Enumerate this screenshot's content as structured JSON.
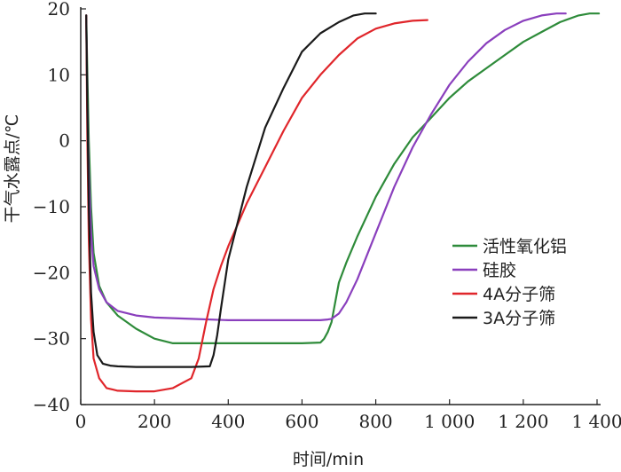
{
  "chart_data": {
    "type": "line",
    "xlabel": "时间/min",
    "ylabel": "干气水露点/℃",
    "xlim": [
      0,
      1400
    ],
    "ylim": [
      -40,
      20
    ],
    "x_ticks": [
      0,
      200,
      400,
      600,
      800,
      1000,
      1200,
      1400
    ],
    "x_tick_labels": [
      "0",
      "200",
      "400",
      "600",
      "800",
      "1 000",
      "1 200",
      "1 400"
    ],
    "y_ticks": [
      -40,
      -30,
      -20,
      -10,
      0,
      10,
      20
    ],
    "y_tick_labels": [
      "−40",
      "−30",
      "−20",
      "−10",
      "0",
      "10",
      "20"
    ],
    "grid": false,
    "legend_position": "right",
    "series": [
      {
        "name": "活性氧化铝",
        "color": "#2e8b3a",
        "x": [
          15,
          18,
          22,
          28,
          35,
          50,
          70,
          100,
          150,
          200,
          250,
          300,
          400,
          500,
          600,
          650,
          660,
          670,
          680,
          700,
          720,
          750,
          800,
          850,
          900,
          950,
          1000,
          1050,
          1100,
          1150,
          1200,
          1250,
          1300,
          1350,
          1380,
          1405
        ],
        "y": [
          19,
          10,
          0,
          -10,
          -17,
          -22,
          -24.5,
          -26.5,
          -28.5,
          -30,
          -30.7,
          -30.7,
          -30.7,
          -30.7,
          -30.7,
          -30.6,
          -30,
          -29,
          -27.5,
          -21.5,
          -18.5,
          -14.5,
          -8.5,
          -3.5,
          0.5,
          3.5,
          6.5,
          9,
          11,
          13,
          15,
          16.5,
          18,
          19,
          19.3,
          19.3
        ]
      },
      {
        "name": "硅胶",
        "color": "#8a3fbd",
        "x": [
          15,
          18,
          22,
          28,
          35,
          50,
          70,
          100,
          150,
          200,
          300,
          400,
          500,
          600,
          650,
          670,
          680,
          700,
          720,
          750,
          800,
          850,
          900,
          950,
          1000,
          1050,
          1100,
          1150,
          1200,
          1250,
          1290,
          1315
        ],
        "y": [
          19,
          5,
          -5,
          -14,
          -19,
          -22.5,
          -24.5,
          -25.8,
          -26.5,
          -26.8,
          -27,
          -27.2,
          -27.2,
          -27.2,
          -27.2,
          -27.1,
          -27,
          -26.2,
          -24.5,
          -21,
          -14,
          -7,
          -1,
          4,
          8.5,
          12,
          14.8,
          16.8,
          18.2,
          19,
          19.3,
          19.3
        ]
      },
      {
        "name": "4A分子筛",
        "color": "#e0262b",
        "x": [
          15,
          18,
          22,
          28,
          35,
          50,
          70,
          100,
          150,
          200,
          250,
          300,
          320,
          340,
          360,
          380,
          400,
          450,
          500,
          550,
          600,
          650,
          700,
          750,
          800,
          850,
          900,
          940
        ],
        "y": [
          19,
          0,
          -15,
          -27,
          -33,
          -36,
          -37.5,
          -37.9,
          -38,
          -38,
          -37.5,
          -36,
          -33,
          -27.5,
          -22.5,
          -19,
          -16,
          -9.5,
          -4,
          1.5,
          6.5,
          10,
          13,
          15.5,
          17,
          17.8,
          18.2,
          18.3
        ]
      },
      {
        "name": "3A分子筛",
        "color": "#1a1a1a",
        "x": [
          15,
          18,
          22,
          28,
          35,
          45,
          60,
          80,
          100,
          150,
          200,
          250,
          300,
          350,
          360,
          370,
          380,
          400,
          450,
          500,
          550,
          600,
          650,
          700,
          740,
          770,
          790,
          800
        ],
        "y": [
          19,
          5,
          -10,
          -23,
          -29,
          -32.5,
          -33.8,
          -34.1,
          -34.2,
          -34.3,
          -34.3,
          -34.3,
          -34.3,
          -34.2,
          -32.5,
          -29.5,
          -25.5,
          -18,
          -7,
          2,
          8,
          13.5,
          16.3,
          18,
          19,
          19.3,
          19.3,
          19.3
        ]
      }
    ]
  }
}
